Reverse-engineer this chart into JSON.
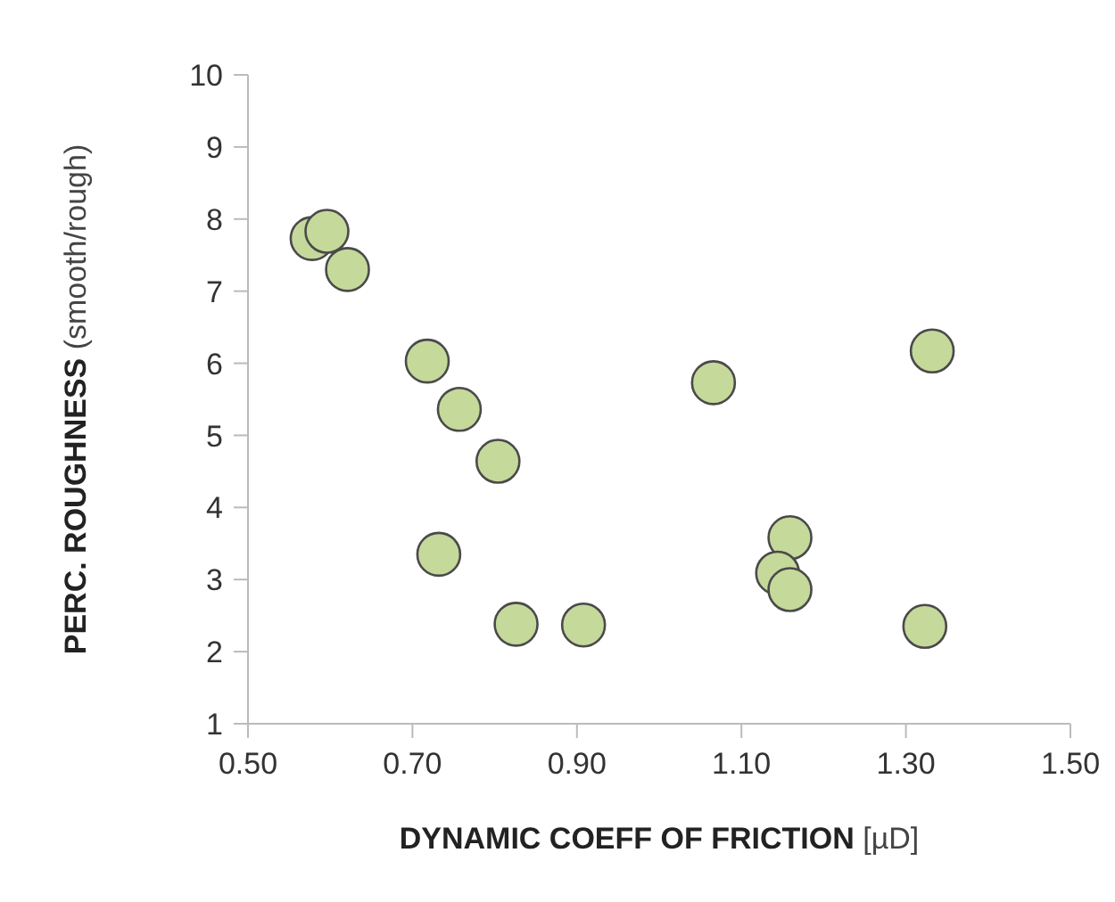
{
  "chart_data": {
    "type": "scatter",
    "xlabel": "DYNAMIC COEFF OF FRICTION [µD]",
    "ylabel": "PERC. ROUGHNESS (smooth/rough)",
    "x": [
      0.578,
      0.596,
      0.621,
      0.718,
      0.757,
      0.804,
      0.732,
      0.826,
      0.908,
      1.066,
      1.332,
      1.159,
      1.144,
      1.159,
      1.323
    ],
    "values": [
      7.73,
      7.83,
      7.3,
      6.03,
      5.36,
      4.64,
      3.35,
      2.38,
      2.37,
      5.73,
      6.17,
      3.58,
      3.09,
      2.86,
      2.35
    ],
    "color": "#c5d99b",
    "marker": "circle",
    "xlim": [
      0.5,
      1.5
    ],
    "xticks": [
      {
        "value": 0.5,
        "label": "0.50"
      },
      {
        "value": 0.7,
        "label": "0.70"
      },
      {
        "value": 0.9,
        "label": "0.90"
      },
      {
        "value": 1.1,
        "label": "1.10"
      },
      {
        "value": 1.3,
        "label": "1.30"
      },
      {
        "value": 1.5,
        "label": "1.50"
      }
    ],
    "ylim": [
      1,
      10
    ],
    "yticks": [
      1,
      2,
      3,
      4,
      5,
      6,
      7,
      8,
      9,
      10
    ],
    "grid": false,
    "legend": false
  }
}
